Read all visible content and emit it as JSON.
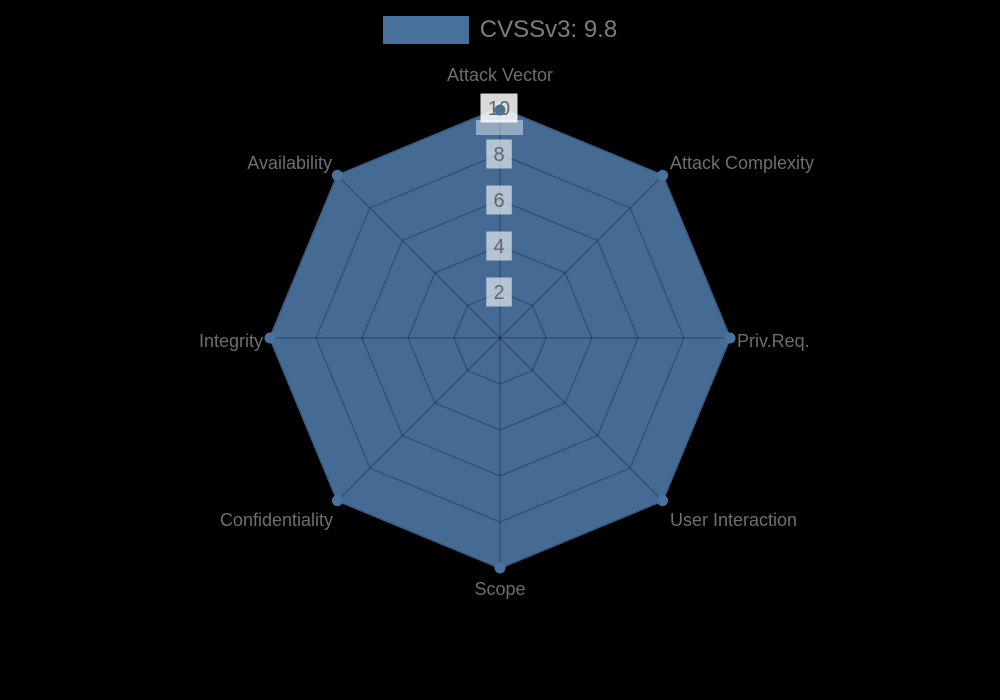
{
  "background": "#000000",
  "legend": {
    "position": "top",
    "items": [
      {
        "label": "CVSSv3: 9.8",
        "swatch_color": "rgba(78,121,168,0.92)"
      }
    ]
  },
  "chart_data": {
    "type": "radar",
    "title": "",
    "categories": [
      "Attack Vector",
      "Attack Complexity",
      "Priv.Req.",
      "User Interaction",
      "Scope",
      "Confidentiality",
      "Integrity",
      "Availability"
    ],
    "series": [
      {
        "name": "CVSSv3: 9.8",
        "values": [
          10,
          10,
          10,
          10,
          10,
          10,
          10,
          10
        ]
      }
    ],
    "scale": {
      "min": 0,
      "max": 10,
      "tick_step": 2,
      "ticks": [
        2,
        4,
        6,
        8,
        10
      ]
    },
    "grid": "octagonal-web",
    "legend_position": "top",
    "colors": {
      "series_fill": "rgba(79,122,169,0.88)",
      "series_border": "#4d79a8",
      "point": "#49739f",
      "grid_line": "rgba(0,0,0,0.25)",
      "tick_backdrop": "rgba(255,255,255,0.60)",
      "max_tick_backdrop": "rgba(255,255,255,0.85)",
      "max_tick_band": "rgba(255,255,255,0.42)",
      "tick_text": "#666666",
      "axis_label": "#6e6e6e",
      "legend_text": "#7d7d7d",
      "background": "#000000"
    }
  }
}
